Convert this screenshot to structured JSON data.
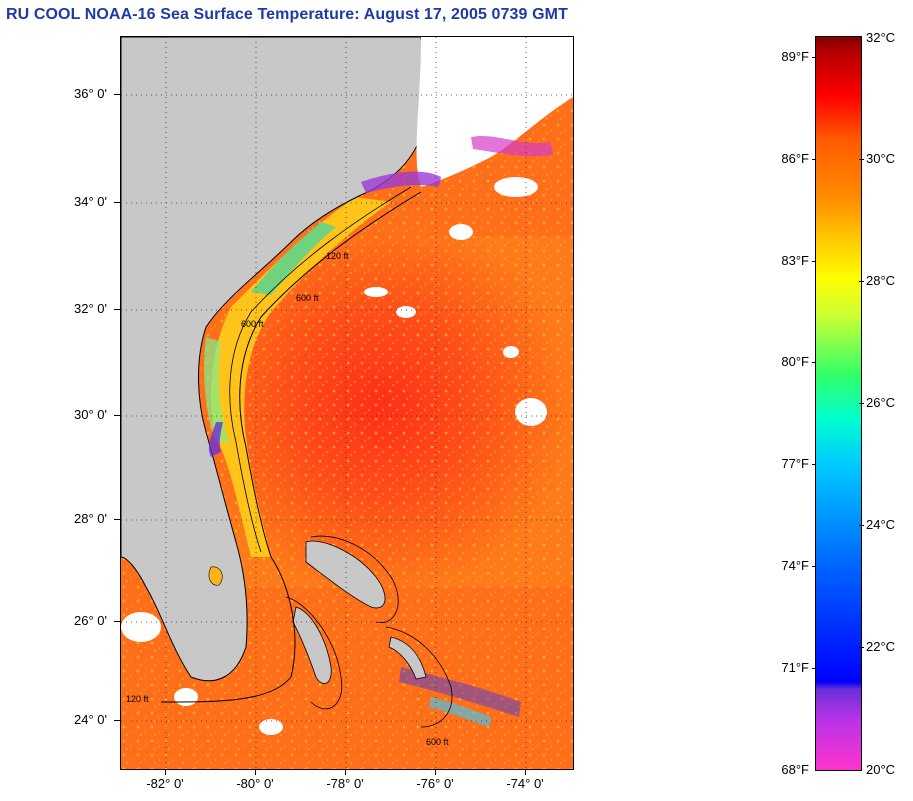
{
  "header": {
    "title": "RU COOL  NOAA-16  Sea Surface Temperature:  August 17, 2005 0739 GMT"
  },
  "map": {
    "lat_labels": [
      "36° 0'",
      "34° 0'",
      "32° 0'",
      "30° 0'",
      "28° 0'",
      "26° 0'",
      "24° 0'"
    ],
    "lon_labels": [
      "-82° 0'",
      "-80° 0'",
      "-78° 0'",
      "-76° 0'",
      "-74° 0'"
    ],
    "contour_labels": [
      "600 ft",
      "120 ft",
      "600 ft",
      "120 ft",
      "600 ft"
    ],
    "colors": {
      "land": "#c8c8c8",
      "cloud": "#ffffff",
      "warm_sea": "#ff6a1a",
      "hot_sea": "#ff3a1a"
    }
  },
  "color_scale": {
    "fahrenheit_labels": [
      "89°F",
      "86°F",
      "83°F",
      "80°F",
      "77°F",
      "74°F",
      "71°F",
      "68°F"
    ],
    "celsius_labels": [
      "32°C",
      "30°C",
      "28°C",
      "26°C",
      "24°C",
      "22°C",
      "20°C"
    ],
    "min_c": 20,
    "max_c": 32
  }
}
